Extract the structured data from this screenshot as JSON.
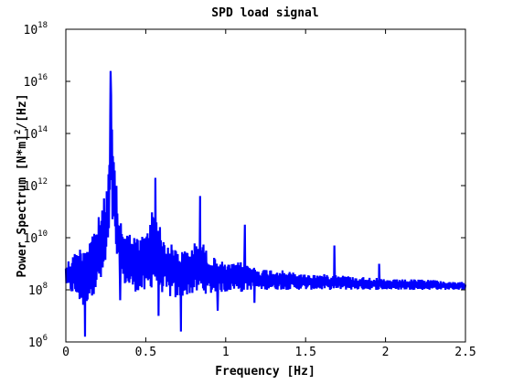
{
  "chart_data": {
    "type": "line",
    "title": "SPD load signal",
    "xlabel": "Frequency [Hz]",
    "ylabel": "Power Spectrum [N*m]",
    "ylabel_sup": "2",
    "ylabel_tail": "/[Hz]",
    "xlim": [
      0,
      2.5
    ],
    "ylim": [
      1000000.0,
      1e+18
    ],
    "yscale": "log",
    "grid": false,
    "line_color": "#0000ff",
    "x_ticks": [
      {
        "value": 0,
        "label": "0"
      },
      {
        "value": 0.5,
        "label": "0.5"
      },
      {
        "value": 1.0,
        "label": "1"
      },
      {
        "value": 1.5,
        "label": "1.5"
      },
      {
        "value": 2.0,
        "label": "2"
      },
      {
        "value": 2.5,
        "label": "2.5"
      }
    ],
    "y_ticks": [
      {
        "value": 1000000.0,
        "base": "10",
        "exp": "6"
      },
      {
        "value": 100000000.0,
        "base": "10",
        "exp": "8"
      },
      {
        "value": 10000000000.0,
        "base": "10",
        "exp": "10"
      },
      {
        "value": 1000000000000.0,
        "base": "10",
        "exp": "12"
      },
      {
        "value": 100000000000000.0,
        "base": "10",
        "exp": "14"
      },
      {
        "value": 1e+16,
        "base": "10",
        "exp": "16"
      },
      {
        "value": 1e+18,
        "base": "10",
        "exp": "18"
      }
    ],
    "series": [
      {
        "envelope_log10": [
          [
            0.0,
            8.2,
            9.0
          ],
          [
            0.02,
            7.9,
            9.2
          ],
          [
            0.05,
            7.8,
            9.4
          ],
          [
            0.08,
            7.6,
            9.6
          ],
          [
            0.11,
            7.2,
            9.8
          ],
          [
            0.14,
            7.6,
            10.0
          ],
          [
            0.17,
            7.8,
            10.3
          ],
          [
            0.2,
            8.0,
            10.7
          ],
          [
            0.23,
            8.3,
            11.3
          ],
          [
            0.25,
            8.8,
            11.8
          ],
          [
            0.27,
            9.8,
            12.8
          ],
          [
            0.28,
            11.5,
            16.4
          ],
          [
            0.29,
            10.5,
            14.0
          ],
          [
            0.31,
            9.5,
            12.5
          ],
          [
            0.33,
            8.6,
            11.0
          ],
          [
            0.36,
            8.2,
            10.5
          ],
          [
            0.4,
            8.0,
            10.2
          ],
          [
            0.45,
            7.9,
            10.0
          ],
          [
            0.5,
            7.8,
            10.2
          ],
          [
            0.53,
            8.0,
            10.8
          ],
          [
            0.55,
            8.2,
            11.5
          ],
          [
            0.57,
            8.0,
            11.2
          ],
          [
            0.6,
            7.9,
            10.0
          ],
          [
            0.65,
            7.7,
            9.8
          ],
          [
            0.7,
            7.6,
            9.6
          ],
          [
            0.75,
            7.8,
            9.5
          ],
          [
            0.8,
            7.8,
            9.8
          ],
          [
            0.85,
            7.9,
            9.9
          ],
          [
            0.9,
            7.8,
            9.3
          ],
          [
            0.95,
            7.9,
            9.2
          ],
          [
            1.0,
            7.9,
            9.0
          ],
          [
            1.05,
            8.0,
            9.0
          ],
          [
            1.1,
            7.9,
            9.1
          ],
          [
            1.15,
            8.0,
            9.0
          ],
          [
            1.2,
            8.0,
            8.8
          ],
          [
            1.3,
            8.0,
            8.8
          ],
          [
            1.4,
            8.0,
            8.7
          ],
          [
            1.5,
            8.0,
            8.6
          ],
          [
            1.6,
            8.0,
            8.6
          ],
          [
            1.7,
            8.0,
            8.6
          ],
          [
            1.8,
            8.0,
            8.5
          ],
          [
            1.9,
            8.0,
            8.5
          ],
          [
            2.0,
            8.0,
            8.4
          ],
          [
            2.1,
            8.0,
            8.4
          ],
          [
            2.2,
            8.0,
            8.4
          ],
          [
            2.3,
            8.0,
            8.4
          ],
          [
            2.4,
            8.0,
            8.3
          ],
          [
            2.5,
            8.0,
            8.3
          ]
        ],
        "peaks_log10": [
          [
            0.28,
            16.4
          ],
          [
            0.56,
            12.3
          ],
          [
            0.84,
            11.6
          ],
          [
            1.12,
            10.5
          ],
          [
            1.68,
            9.7
          ],
          [
            1.96,
            9.0
          ]
        ],
        "dips_log10": [
          [
            0.12,
            6.2
          ],
          [
            0.72,
            6.4
          ],
          [
            0.58,
            7.0
          ],
          [
            0.34,
            7.6
          ],
          [
            0.95,
            7.2
          ],
          [
            1.18,
            7.5
          ]
        ]
      }
    ]
  }
}
